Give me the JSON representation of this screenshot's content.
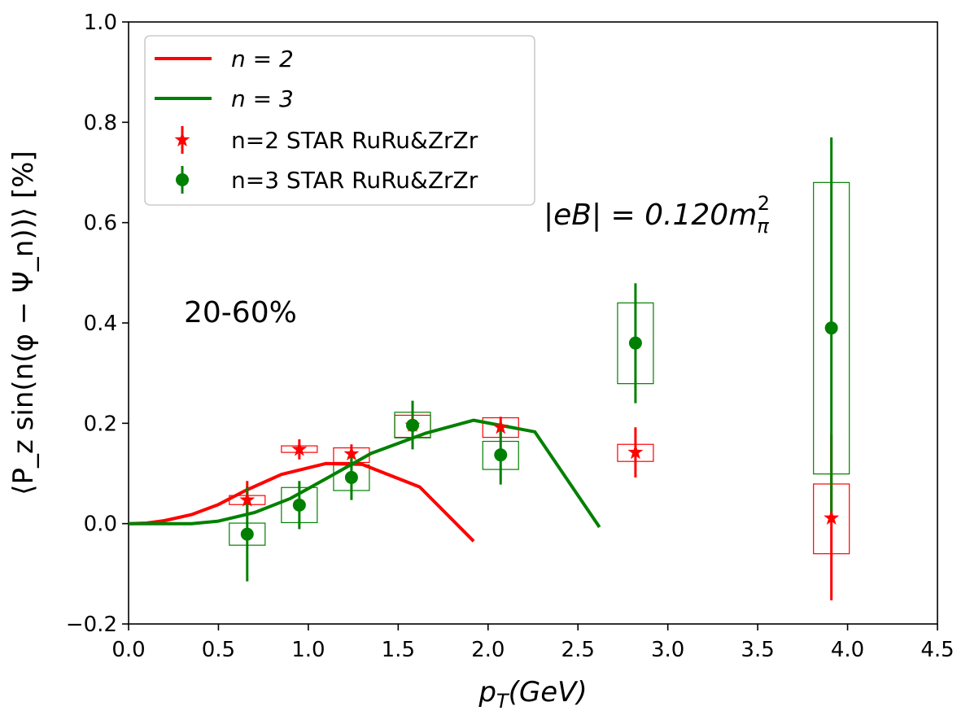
{
  "chart_data": {
    "type": "line",
    "title": "",
    "xlabel": "p_T(GeV)",
    "ylabel": "⟨P_z sin(n(φ − Ψ_n))⟩ [%]",
    "xlim": [
      0.0,
      4.5
    ],
    "ylim": [
      -0.2,
      1.0
    ],
    "grid": false,
    "legend_position": "top-left",
    "x_ticks": [
      0.0,
      0.5,
      1.0,
      1.5,
      2.0,
      2.5,
      3.0,
      3.5,
      4.0,
      4.5
    ],
    "x_tick_labels": [
      "0.0",
      "0.5",
      "1.0",
      "1.5",
      "2.0",
      "2.5",
      "3.0",
      "3.5",
      "4.0",
      "4.5"
    ],
    "y_ticks": [
      -0.2,
      0.0,
      0.2,
      0.4,
      0.6,
      0.8,
      1.0
    ],
    "y_tick_labels": [
      "−0.2",
      "0.0",
      "0.2",
      "0.4",
      "0.6",
      "0.8",
      "1.0"
    ],
    "series": [
      {
        "name": "n = 2",
        "kind": "line",
        "color": "#ff0000",
        "x": [
          0.0,
          0.1,
          0.2,
          0.35,
          0.5,
          0.65,
          0.85,
          1.1,
          1.3,
          1.62,
          1.92
        ],
        "y": [
          0.0,
          0.001,
          0.006,
          0.018,
          0.038,
          0.066,
          0.098,
          0.12,
          0.118,
          0.073,
          -0.035
        ]
      },
      {
        "name": "n = 3",
        "kind": "line",
        "color": "#008000",
        "x": [
          0.0,
          0.35,
          0.5,
          0.7,
          0.9,
          1.1,
          1.35,
          1.65,
          1.92,
          2.26,
          2.62
        ],
        "y": [
          0.0,
          0.0,
          0.005,
          0.022,
          0.05,
          0.09,
          0.14,
          0.18,
          0.206,
          0.183,
          -0.007
        ]
      },
      {
        "name": "n=2 STAR RuRu&ZrZr",
        "kind": "points",
        "marker": "star",
        "color": "#ff0000",
        "points": [
          {
            "x": 0.66,
            "y": 0.047,
            "err_low": 0.022,
            "err_high": 0.085,
            "sys_low": 0.038,
            "sys_high": 0.056
          },
          {
            "x": 0.95,
            "y": 0.148,
            "err_low": 0.128,
            "err_high": 0.168,
            "sys_low": 0.142,
            "sys_high": 0.155
          },
          {
            "x": 1.24,
            "y": 0.139,
            "err_low": 0.118,
            "err_high": 0.158,
            "sys_low": 0.122,
            "sys_high": 0.151
          },
          {
            "x": 1.58,
            "y": 0.196,
            "err_low": 0.175,
            "err_high": 0.214,
            "sys_low": 0.172,
            "sys_high": 0.216
          },
          {
            "x": 2.07,
            "y": 0.192,
            "err_low": 0.172,
            "err_high": 0.213,
            "sys_low": 0.172,
            "sys_high": 0.211
          },
          {
            "x": 2.82,
            "y": 0.142,
            "err_low": 0.092,
            "err_high": 0.192,
            "sys_low": 0.124,
            "sys_high": 0.158
          },
          {
            "x": 3.91,
            "y": 0.011,
            "err_low": -0.153,
            "err_high": 0.178,
            "sys_low": -0.06,
            "sys_high": 0.079
          }
        ]
      },
      {
        "name": "n=3 STAR RuRu&ZrZr",
        "kind": "points",
        "marker": "circle",
        "color": "#008000",
        "points": [
          {
            "x": 0.66,
            "y": -0.021,
            "err_low": -0.115,
            "err_high": 0.073,
            "sys_low": -0.043,
            "sys_high": 0.001
          },
          {
            "x": 0.95,
            "y": 0.037,
            "err_low": -0.011,
            "err_high": 0.085,
            "sys_low": 0.002,
            "sys_high": 0.072
          },
          {
            "x": 1.24,
            "y": 0.092,
            "err_low": 0.047,
            "err_high": 0.137,
            "sys_low": 0.066,
            "sys_high": 0.117
          },
          {
            "x": 1.58,
            "y": 0.196,
            "err_low": 0.148,
            "err_high": 0.245,
            "sys_low": 0.171,
            "sys_high": 0.222
          },
          {
            "x": 2.07,
            "y": 0.137,
            "err_low": 0.078,
            "err_high": 0.194,
            "sys_low": 0.108,
            "sys_high": 0.164
          },
          {
            "x": 2.82,
            "y": 0.36,
            "err_low": 0.24,
            "err_high": 0.479,
            "sys_low": 0.279,
            "sys_high": 0.44
          },
          {
            "x": 3.91,
            "y": 0.39,
            "err_low": 0.009,
            "err_high": 0.77,
            "sys_low": 0.099,
            "sys_high": 0.68
          }
        ]
      }
    ],
    "annotations": [
      {
        "text": "20-60%",
        "x": 0.3,
        "y": 0.4
      },
      {
        "text": "|eB| = 0.120m_π²",
        "x": 2.3,
        "y": 0.6
      }
    ]
  },
  "legend": {
    "n2_line_label": "n = 2",
    "n3_line_label": "n = 3",
    "n2_star_label": "n=2 STAR RuRu&ZrZr",
    "n3_star_label": "n=3 STAR RuRu&ZrZr"
  },
  "annotations_text": {
    "centrality": "20-60%",
    "field_prefix": "|eB| = 0.120m",
    "field_sub": "π",
    "field_sup": "2"
  },
  "colors": {
    "n2": "#ff0000",
    "n3": "#008000",
    "axis": "#000000"
  }
}
